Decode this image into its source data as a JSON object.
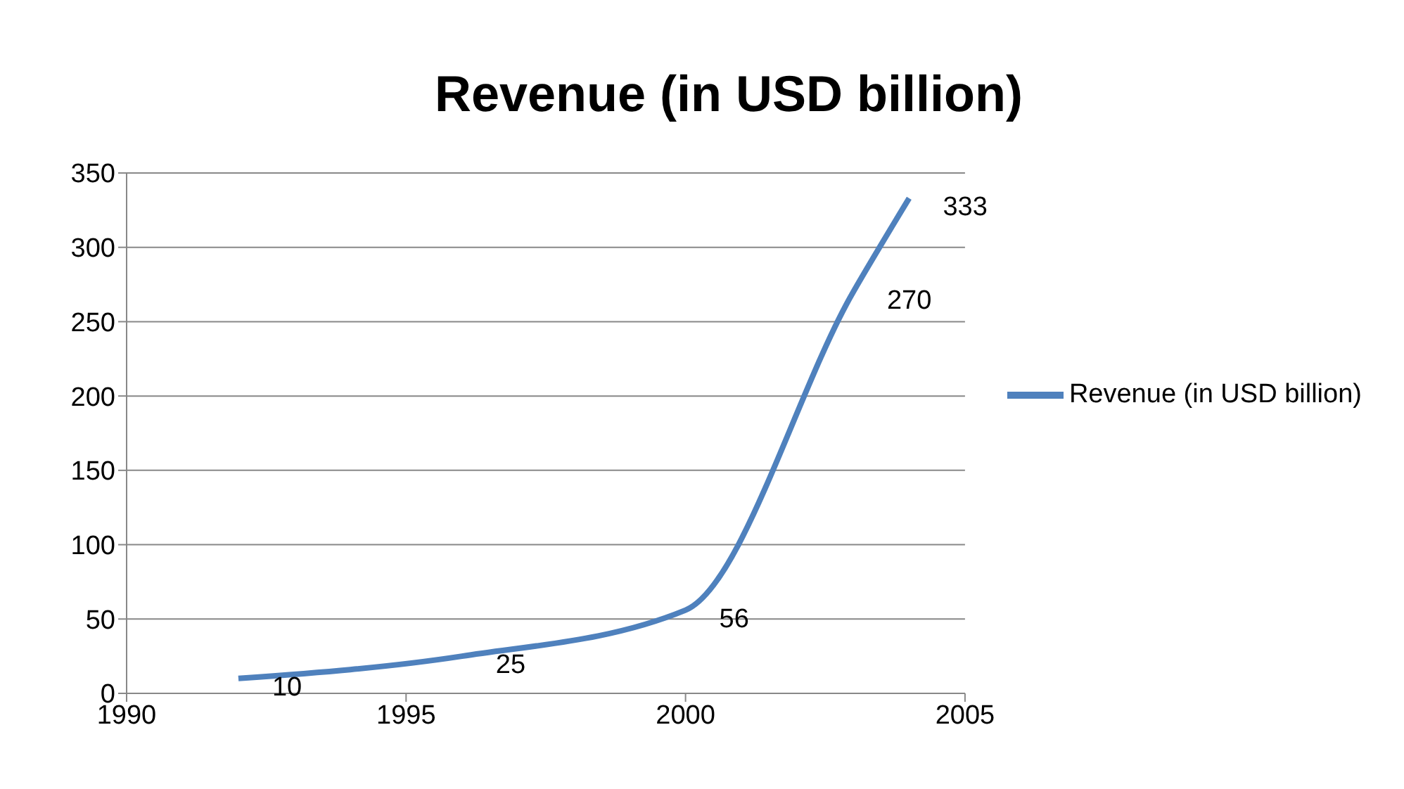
{
  "chart_data": {
    "type": "line",
    "title": "Revenue (in USD billion)",
    "x": [
      1992,
      1996,
      2000,
      2003,
      2004
    ],
    "series": [
      {
        "name": "Revenue (in USD billion)",
        "color": "#4f81bd",
        "values": [
          10,
          25,
          56,
          270,
          333
        ]
      }
    ],
    "xlim": [
      1990,
      2005
    ],
    "xticks": [
      1990,
      1995,
      2000,
      2005
    ],
    "ylim": [
      0,
      350
    ],
    "yticks": [
      0,
      50,
      100,
      150,
      200,
      250,
      300,
      350
    ],
    "grid": "y",
    "legend": "right",
    "marker": "none",
    "line_style": "solid",
    "data_labels": true
  }
}
